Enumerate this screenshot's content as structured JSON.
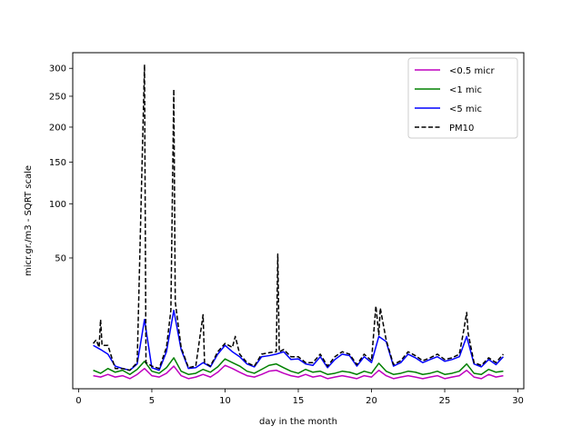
{
  "chart_data": {
    "type": "line",
    "title": "",
    "xlabel": "day in the month",
    "ylabel": "micr.gr./m3 - SQRT scale",
    "y_scale": "sqrt",
    "xlim": [
      -0.4,
      30.4
    ],
    "ylim": [
      0,
      330
    ],
    "xticks": [
      0,
      5,
      10,
      15,
      20,
      25,
      30
    ],
    "yticks": [
      50,
      100,
      150,
      200,
      250,
      300
    ],
    "grid": false,
    "legend": "top-right",
    "series": [
      {
        "name": "<0.5 micr",
        "color": "#bf00bf",
        "style": "solid",
        "points": [
          [
            1.0,
            0.5
          ],
          [
            1.5,
            0.4
          ],
          [
            2.0,
            0.6
          ],
          [
            2.5,
            0.4
          ],
          [
            3.0,
            0.5
          ],
          [
            3.5,
            0.3
          ],
          [
            4.0,
            0.6
          ],
          [
            4.5,
            1.2
          ],
          [
            5.0,
            0.5
          ],
          [
            5.5,
            0.4
          ],
          [
            6.0,
            0.7
          ],
          [
            6.5,
            1.5
          ],
          [
            7.0,
            0.5
          ],
          [
            7.5,
            0.3
          ],
          [
            8.0,
            0.4
          ],
          [
            8.5,
            0.6
          ],
          [
            9.0,
            0.4
          ],
          [
            9.5,
            0.8
          ],
          [
            10.0,
            1.6
          ],
          [
            10.5,
            1.2
          ],
          [
            11.0,
            0.8
          ],
          [
            11.5,
            0.5
          ],
          [
            12.0,
            0.4
          ],
          [
            12.5,
            0.6
          ],
          [
            13.0,
            0.9
          ],
          [
            13.5,
            1.0
          ],
          [
            14.0,
            0.7
          ],
          [
            14.5,
            0.5
          ],
          [
            15.0,
            0.4
          ],
          [
            15.5,
            0.6
          ],
          [
            16.0,
            0.4
          ],
          [
            16.5,
            0.5
          ],
          [
            17.0,
            0.3
          ],
          [
            17.5,
            0.4
          ],
          [
            18.0,
            0.5
          ],
          [
            18.5,
            0.4
          ],
          [
            19.0,
            0.3
          ],
          [
            19.5,
            0.5
          ],
          [
            20.0,
            0.4
          ],
          [
            20.5,
            1.0
          ],
          [
            21.0,
            0.5
          ],
          [
            21.5,
            0.3
          ],
          [
            22.0,
            0.4
          ],
          [
            22.5,
            0.5
          ],
          [
            23.0,
            0.4
          ],
          [
            23.5,
            0.3
          ],
          [
            24.0,
            0.4
          ],
          [
            24.5,
            0.5
          ],
          [
            25.0,
            0.3
          ],
          [
            25.5,
            0.4
          ],
          [
            26.0,
            0.5
          ],
          [
            26.5,
            1.0
          ],
          [
            27.0,
            0.4
          ],
          [
            27.5,
            0.3
          ],
          [
            28.0,
            0.6
          ],
          [
            28.5,
            0.4
          ],
          [
            29.0,
            0.5
          ]
        ]
      },
      {
        "name": "<1 mic",
        "color": "#008000",
        "style": "solid",
        "points": [
          [
            1.0,
            1.0
          ],
          [
            1.5,
            0.7
          ],
          [
            2.0,
            1.2
          ],
          [
            2.5,
            0.8
          ],
          [
            3.0,
            1.0
          ],
          [
            3.5,
            0.6
          ],
          [
            4.0,
            1.1
          ],
          [
            4.5,
            2.2
          ],
          [
            5.0,
            0.9
          ],
          [
            5.5,
            0.7
          ],
          [
            6.0,
            1.3
          ],
          [
            6.5,
            2.8
          ],
          [
            7.0,
            0.9
          ],
          [
            7.5,
            0.6
          ],
          [
            8.0,
            0.7
          ],
          [
            8.5,
            1.1
          ],
          [
            9.0,
            0.8
          ],
          [
            9.5,
            1.4
          ],
          [
            10.0,
            2.6
          ],
          [
            10.5,
            2.0
          ],
          [
            11.0,
            1.5
          ],
          [
            11.5,
            0.9
          ],
          [
            12.0,
            0.7
          ],
          [
            12.5,
            1.1
          ],
          [
            13.0,
            1.6
          ],
          [
            13.5,
            1.8
          ],
          [
            14.0,
            1.3
          ],
          [
            14.5,
            0.9
          ],
          [
            15.0,
            0.7
          ],
          [
            15.5,
            1.1
          ],
          [
            16.0,
            0.8
          ],
          [
            16.5,
            0.9
          ],
          [
            17.0,
            0.6
          ],
          [
            17.5,
            0.7
          ],
          [
            18.0,
            0.9
          ],
          [
            18.5,
            0.8
          ],
          [
            19.0,
            0.6
          ],
          [
            19.5,
            0.9
          ],
          [
            20.0,
            0.7
          ],
          [
            20.5,
            1.9
          ],
          [
            21.0,
            0.9
          ],
          [
            21.5,
            0.6
          ],
          [
            22.0,
            0.7
          ],
          [
            22.5,
            0.9
          ],
          [
            23.0,
            0.8
          ],
          [
            23.5,
            0.6
          ],
          [
            24.0,
            0.7
          ],
          [
            24.5,
            0.9
          ],
          [
            25.0,
            0.6
          ],
          [
            25.5,
            0.7
          ],
          [
            26.0,
            0.9
          ],
          [
            26.5,
            1.8
          ],
          [
            27.0,
            0.7
          ],
          [
            27.5,
            0.6
          ],
          [
            28.0,
            1.1
          ],
          [
            28.5,
            0.8
          ],
          [
            29.0,
            0.9
          ]
        ]
      },
      {
        "name": "<5 mic",
        "color": "#0000ff",
        "style": "solid",
        "points": [
          [
            1.0,
            5.5
          ],
          [
            1.5,
            4.5
          ],
          [
            2.0,
            3.5
          ],
          [
            2.5,
            1.5
          ],
          [
            3.0,
            1.2
          ],
          [
            3.5,
            1.0
          ],
          [
            4.0,
            1.8
          ],
          [
            4.5,
            14.0
          ],
          [
            5.0,
            1.3
          ],
          [
            5.5,
            1.0
          ],
          [
            6.0,
            4.0
          ],
          [
            6.5,
            18.0
          ],
          [
            7.0,
            4.5
          ],
          [
            7.5,
            1.2
          ],
          [
            8.0,
            1.3
          ],
          [
            8.5,
            2.0
          ],
          [
            9.0,
            1.4
          ],
          [
            9.5,
            3.5
          ],
          [
            10.0,
            5.5
          ],
          [
            10.5,
            4.0
          ],
          [
            11.0,
            3.0
          ],
          [
            11.5,
            1.8
          ],
          [
            12.0,
            1.4
          ],
          [
            12.5,
            3.0
          ],
          [
            13.0,
            3.2
          ],
          [
            13.5,
            3.5
          ],
          [
            14.0,
            4.0
          ],
          [
            14.5,
            2.5
          ],
          [
            15.0,
            2.6
          ],
          [
            15.5,
            1.8
          ],
          [
            16.0,
            1.6
          ],
          [
            16.5,
            3.0
          ],
          [
            17.0,
            1.3
          ],
          [
            17.5,
            2.5
          ],
          [
            18.0,
            3.5
          ],
          [
            18.5,
            3.2
          ],
          [
            19.0,
            1.5
          ],
          [
            19.5,
            3.0
          ],
          [
            20.0,
            2.0
          ],
          [
            20.5,
            8.0
          ],
          [
            21.0,
            6.5
          ],
          [
            21.5,
            1.5
          ],
          [
            22.0,
            2.0
          ],
          [
            22.5,
            3.5
          ],
          [
            23.0,
            2.8
          ],
          [
            23.5,
            2.0
          ],
          [
            24.0,
            2.5
          ],
          [
            24.5,
            3.0
          ],
          [
            25.0,
            2.2
          ],
          [
            25.5,
            2.5
          ],
          [
            26.0,
            3.0
          ],
          [
            26.5,
            8.0
          ],
          [
            27.0,
            1.8
          ],
          [
            27.5,
            1.4
          ],
          [
            28.0,
            2.5
          ],
          [
            28.5,
            1.7
          ],
          [
            29.0,
            3.0
          ]
        ]
      },
      {
        "name": "PM10",
        "color": "#000000",
        "style": "dashed",
        "points": [
          [
            1.0,
            6.0
          ],
          [
            1.2,
            7.0
          ],
          [
            1.4,
            5.0
          ],
          [
            1.5,
            14.0
          ],
          [
            1.6,
            5.5
          ],
          [
            2.0,
            5.5
          ],
          [
            2.5,
            1.2
          ],
          [
            3.0,
            1.2
          ],
          [
            3.5,
            1.0
          ],
          [
            4.0,
            2.0
          ],
          [
            4.5,
            307.0
          ],
          [
            4.6,
            2.0
          ],
          [
            5.0,
            1.5
          ],
          [
            5.5,
            1.2
          ],
          [
            6.0,
            5.0
          ],
          [
            6.3,
            18.0
          ],
          [
            6.5,
            262.0
          ],
          [
            6.6,
            22.0
          ],
          [
            7.0,
            5.0
          ],
          [
            7.5,
            1.3
          ],
          [
            8.0,
            1.5
          ],
          [
            8.5,
            16.0
          ],
          [
            8.6,
            2.0
          ],
          [
            9.0,
            1.5
          ],
          [
            9.5,
            4.0
          ],
          [
            10.0,
            6.0
          ],
          [
            10.5,
            5.0
          ],
          [
            10.7,
            8.0
          ],
          [
            11.0,
            3.5
          ],
          [
            11.5,
            2.0
          ],
          [
            12.0,
            1.5
          ],
          [
            12.5,
            3.5
          ],
          [
            13.0,
            3.8
          ],
          [
            13.5,
            4.0
          ],
          [
            13.6,
            53.0
          ],
          [
            13.7,
            4.0
          ],
          [
            14.0,
            4.5
          ],
          [
            14.5,
            3.0
          ],
          [
            15.0,
            3.0
          ],
          [
            15.5,
            2.0
          ],
          [
            16.0,
            2.0
          ],
          [
            16.5,
            3.5
          ],
          [
            17.0,
            1.5
          ],
          [
            17.5,
            3.0
          ],
          [
            18.0,
            4.0
          ],
          [
            18.5,
            3.5
          ],
          [
            19.0,
            1.7
          ],
          [
            19.5,
            3.5
          ],
          [
            20.0,
            2.3
          ],
          [
            20.3,
            20.0
          ],
          [
            20.5,
            8.5
          ],
          [
            20.6,
            19.0
          ],
          [
            21.0,
            7.0
          ],
          [
            21.5,
            1.7
          ],
          [
            22.0,
            2.3
          ],
          [
            22.5,
            4.0
          ],
          [
            23.0,
            3.2
          ],
          [
            23.5,
            2.3
          ],
          [
            24.0,
            2.8
          ],
          [
            24.5,
            3.5
          ],
          [
            25.0,
            2.5
          ],
          [
            25.5,
            2.8
          ],
          [
            26.0,
            3.5
          ],
          [
            26.3,
            10.0
          ],
          [
            26.5,
            17.0
          ],
          [
            26.6,
            9.0
          ],
          [
            27.0,
            2.0
          ],
          [
            27.5,
            1.6
          ],
          [
            28.0,
            2.8
          ],
          [
            28.5,
            2.0
          ],
          [
            29.0,
            3.5
          ]
        ]
      }
    ]
  }
}
